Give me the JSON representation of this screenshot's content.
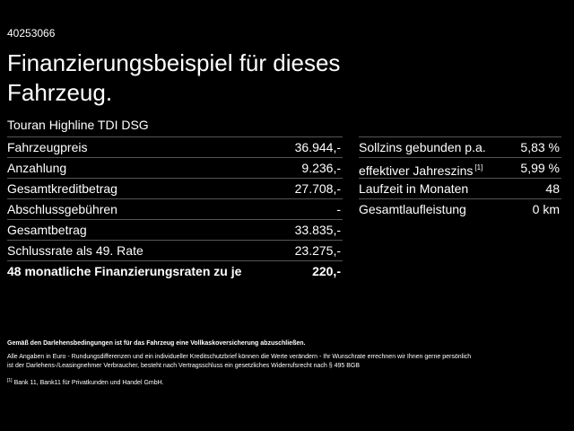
{
  "id": "40253066",
  "title": "Finanzierungsbeispiel für dieses Fahrzeug.",
  "subtitle": "Touran Highline TDI DSG",
  "left_table": {
    "rows": [
      [
        "Fahrzeugpreis",
        "36.944,-"
      ],
      [
        "Anzahlung",
        "9.236,-"
      ],
      [
        "Gesamtkreditbetrag",
        "27.708,-"
      ],
      [
        "Abschlussgebühren",
        "-"
      ],
      [
        "Gesamtbetrag",
        "33.835,-"
      ],
      [
        "Schlussrate als 49. Rate",
        "23.275,-"
      ],
      [
        "48 monatliche Finanzierungsraten zu je",
        "220,-"
      ]
    ]
  },
  "right_table": {
    "rows": [
      [
        "Sollzins gebunden p.a.",
        "5,83 %"
      ],
      [
        "effektiver Jahreszins",
        "5,99 %"
      ],
      [
        "Laufzeit in Monaten",
        "48"
      ],
      [
        "Gesamtlaufleistung",
        "0 km"
      ]
    ],
    "ref": "[1]"
  },
  "notes": {
    "insurance": "Gemäß den Darlehensbedingungen ist für das Fahrzeug eine Vollkaskoversicherung abzuschließen.",
    "disclaimer": [
      "Alle Angaben in Euro - Rundungsdifferenzen und ein individueller Kreditschutzbrief können die Werte verändern - Ihr Wunschrate errechnen wir Ihnen gerne persönlich",
      "ist der Darlehens-/Leasingnehmer Verbraucher, besteht nach Vertragsschluss ein gesetzliches Widerrufsrecht nach § 495 BGB"
    ],
    "footnote": {
      "ref": "[1]",
      "text": "Bank 11, Bank11 für Privatkunden und Handel GmbH."
    }
  }
}
